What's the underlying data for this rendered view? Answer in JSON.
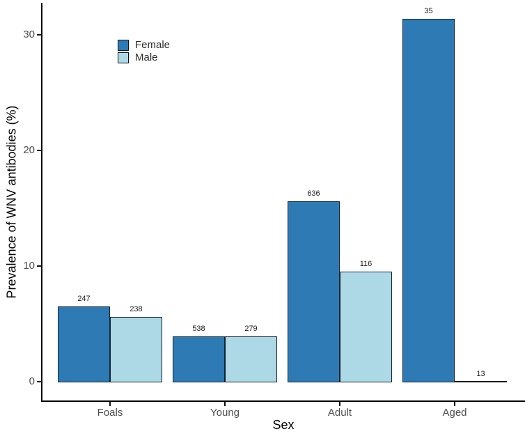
{
  "chart_data": {
    "type": "bar",
    "title": "",
    "xlabel": "Sex",
    "ylabel": "Prevalence of WNV antibodies (%)",
    "categories": [
      "Foals",
      "Young",
      "Adult",
      "Aged"
    ],
    "series": [
      {
        "name": "Female",
        "color": "#2E7AB5",
        "values": [
          6.5,
          3.9,
          15.6,
          31.4
        ],
        "bar_labels": [
          "247",
          "538",
          "636",
          "35"
        ]
      },
      {
        "name": "Male",
        "color": "#ADD8E6",
        "values": [
          5.6,
          3.9,
          9.5,
          0
        ],
        "bar_labels": [
          "238",
          "279",
          "116",
          "13"
        ]
      }
    ],
    "ylim": [
      0,
      31.5
    ],
    "yticks": [
      0,
      10,
      20,
      30
    ],
    "grid": "off",
    "legend_position": "inside-top-left",
    "bar_outline_color": "#14222e",
    "axis_text_color": "#4d4d4d",
    "axis_title_color": "#000000"
  }
}
